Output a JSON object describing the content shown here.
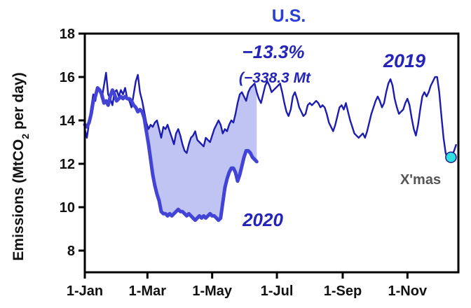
{
  "chart_data": {
    "type": "line",
    "title": "U.S.",
    "ylabel_main": "Emissions (MtCO",
    "ylabel_sub": "2",
    "ylabel_tail": " per day)",
    "xlabel": "",
    "ylim": [
      7,
      18
    ],
    "y_ticks": [
      8,
      10,
      12,
      14,
      16,
      18
    ],
    "x_ticks": [
      "1-Jan",
      "1-Mar",
      "1-May",
      "1-Jul",
      "1-Sep",
      "1-Nov"
    ],
    "x_tick_days": [
      0,
      59,
      120,
      181,
      243,
      304
    ],
    "grid": false,
    "colors": {
      "series_2019": "#1c1cb0",
      "series_2020": "#4343d6",
      "shade": "#bfc4f2",
      "title": "#2a3fd6",
      "annotation": "#2424b8",
      "marker": "#2ee0e0",
      "xmas_label": "#555555"
    },
    "series": [
      {
        "name": "2019",
        "points": [
          [
            0,
            13.6
          ],
          [
            2,
            13.2
          ],
          [
            4,
            13.9
          ],
          [
            6,
            14.6
          ],
          [
            8,
            15.2
          ],
          [
            10,
            14.9
          ],
          [
            12,
            15.5
          ],
          [
            14,
            15.4
          ],
          [
            16,
            15.0
          ],
          [
            18,
            15.6
          ],
          [
            20,
            16.2
          ],
          [
            22,
            15.2
          ],
          [
            24,
            15.0
          ],
          [
            26,
            14.7
          ],
          [
            28,
            15.3
          ],
          [
            30,
            15.4
          ],
          [
            32,
            15.1
          ],
          [
            34,
            15.4
          ],
          [
            36,
            15.2
          ],
          [
            38,
            15.5
          ],
          [
            40,
            15.0
          ],
          [
            42,
            14.9
          ],
          [
            44,
            14.6
          ],
          [
            46,
            15.2
          ],
          [
            48,
            15.8
          ],
          [
            50,
            16.1
          ],
          [
            52,
            15.3
          ],
          [
            54,
            14.9
          ],
          [
            56,
            14.4
          ],
          [
            58,
            13.9
          ],
          [
            60,
            13.6
          ],
          [
            62,
            13.8
          ],
          [
            64,
            13.7
          ],
          [
            66,
            13.9
          ],
          [
            68,
            14.0
          ],
          [
            70,
            13.6
          ],
          [
            72,
            13.2
          ],
          [
            74,
            13.7
          ],
          [
            76,
            13.6
          ],
          [
            78,
            13.8
          ],
          [
            80,
            13.5
          ],
          [
            82,
            13.2
          ],
          [
            84,
            12.9
          ],
          [
            86,
            13.4
          ],
          [
            88,
            13.6
          ],
          [
            90,
            13.3
          ],
          [
            92,
            12.9
          ],
          [
            94,
            12.6
          ],
          [
            96,
            12.5
          ],
          [
            98,
            12.9
          ],
          [
            100,
            13.2
          ],
          [
            102,
            13.3
          ],
          [
            104,
            13.5
          ],
          [
            106,
            13.1
          ],
          [
            108,
            13.0
          ],
          [
            110,
            12.9
          ],
          [
            112,
            12.8
          ],
          [
            114,
            13.2
          ],
          [
            116,
            13.1
          ],
          [
            118,
            13.0
          ],
          [
            120,
            13.3
          ],
          [
            122,
            13.6
          ],
          [
            124,
            13.8
          ],
          [
            126,
            14.0
          ],
          [
            128,
            13.8
          ],
          [
            130,
            13.4
          ],
          [
            132,
            13.6
          ],
          [
            134,
            13.5
          ],
          [
            136,
            13.8
          ],
          [
            138,
            14.0
          ],
          [
            140,
            13.9
          ],
          [
            142,
            14.3
          ],
          [
            144,
            14.8
          ],
          [
            146,
            15.2
          ],
          [
            148,
            15.3
          ],
          [
            150,
            15.1
          ],
          [
            152,
            14.9
          ],
          [
            154,
            15.3
          ],
          [
            156,
            15.5
          ],
          [
            158,
            15.6
          ],
          [
            160,
            15.7
          ],
          [
            162,
            15.3
          ],
          [
            164,
            15.0
          ],
          [
            166,
            14.8
          ],
          [
            168,
            15.2
          ],
          [
            170,
            15.6
          ],
          [
            172,
            15.8
          ],
          [
            174,
            15.6
          ],
          [
            176,
            15.3
          ],
          [
            178,
            15.4
          ],
          [
            180,
            15.5
          ],
          [
            182,
            15.6
          ],
          [
            184,
            15.7
          ],
          [
            186,
            15.3
          ],
          [
            188,
            14.8
          ],
          [
            190,
            14.4
          ],
          [
            192,
            14.2
          ],
          [
            194,
            14.5
          ],
          [
            196,
            15.1
          ],
          [
            198,
            15.3
          ],
          [
            200,
            15.0
          ],
          [
            202,
            14.6
          ],
          [
            204,
            14.4
          ],
          [
            206,
            14.2
          ],
          [
            208,
            14.3
          ],
          [
            210,
            14.7
          ],
          [
            212,
            14.8
          ],
          [
            214,
            14.7
          ],
          [
            216,
            14.8
          ],
          [
            218,
            14.9
          ],
          [
            220,
            14.8
          ],
          [
            222,
            14.6
          ],
          [
            224,
            14.7
          ],
          [
            226,
            14.6
          ],
          [
            228,
            14.3
          ],
          [
            230,
            13.9
          ],
          [
            232,
            13.7
          ],
          [
            234,
            13.5
          ],
          [
            236,
            13.8
          ],
          [
            238,
            14.2
          ],
          [
            240,
            14.6
          ],
          [
            242,
            14.7
          ],
          [
            244,
            14.5
          ],
          [
            246,
            14.8
          ],
          [
            248,
            14.4
          ],
          [
            250,
            14.0
          ],
          [
            252,
            13.7
          ],
          [
            254,
            13.4
          ],
          [
            256,
            13.3
          ],
          [
            258,
            13.2
          ],
          [
            260,
            13.3
          ],
          [
            262,
            13.4
          ],
          [
            264,
            13.2
          ],
          [
            266,
            13.5
          ],
          [
            268,
            13.9
          ],
          [
            270,
            14.3
          ],
          [
            272,
            14.6
          ],
          [
            274,
            14.9
          ],
          [
            276,
            15.1
          ],
          [
            278,
            14.9
          ],
          [
            280,
            14.6
          ],
          [
            282,
            14.8
          ],
          [
            284,
            15.3
          ],
          [
            286,
            15.7
          ],
          [
            288,
            15.9
          ],
          [
            290,
            15.6
          ],
          [
            292,
            15.0
          ],
          [
            294,
            14.6
          ],
          [
            296,
            14.3
          ],
          [
            298,
            14.4
          ],
          [
            300,
            14.5
          ],
          [
            302,
            14.8
          ],
          [
            304,
            15.0
          ],
          [
            306,
            14.7
          ],
          [
            308,
            14.1
          ],
          [
            310,
            13.6
          ],
          [
            312,
            13.3
          ],
          [
            314,
            13.8
          ],
          [
            316,
            14.5
          ],
          [
            318,
            15.1
          ],
          [
            320,
            15.3
          ],
          [
            322,
            15.1
          ],
          [
            324,
            15.3
          ],
          [
            326,
            15.6
          ],
          [
            328,
            15.8
          ],
          [
            330,
            16.0
          ],
          [
            332,
            16.0
          ],
          [
            334,
            15.3
          ],
          [
            336,
            14.2
          ],
          [
            338,
            13.2
          ],
          [
            340,
            12.5
          ],
          [
            342,
            12.2
          ],
          [
            344,
            12.3
          ],
          [
            346,
            12.4
          ],
          [
            348,
            12.6
          ],
          [
            350,
            12.9
          ]
        ]
      },
      {
        "name": "2020",
        "points": [
          [
            0,
            13.8
          ],
          [
            2,
            13.7
          ],
          [
            4,
            13.9
          ],
          [
            6,
            14.3
          ],
          [
            8,
            14.9
          ],
          [
            10,
            15.1
          ],
          [
            12,
            15.5
          ],
          [
            14,
            15.4
          ],
          [
            16,
            15.2
          ],
          [
            18,
            14.8
          ],
          [
            20,
            14.9
          ],
          [
            22,
            14.7
          ],
          [
            24,
            15.1
          ],
          [
            26,
            15.4
          ],
          [
            28,
            15.2
          ],
          [
            30,
            14.9
          ],
          [
            32,
            15.0
          ],
          [
            34,
            15.1
          ],
          [
            36,
            15.0
          ],
          [
            38,
            15.1
          ],
          [
            40,
            15.0
          ],
          [
            42,
            15.0
          ],
          [
            44,
            14.9
          ],
          [
            46,
            14.7
          ],
          [
            48,
            14.6
          ],
          [
            50,
            14.4
          ],
          [
            52,
            14.5
          ],
          [
            54,
            14.4
          ],
          [
            56,
            14.1
          ],
          [
            58,
            13.5
          ],
          [
            60,
            12.9
          ],
          [
            62,
            12.2
          ],
          [
            64,
            11.5
          ],
          [
            66,
            11.0
          ],
          [
            68,
            10.6
          ],
          [
            70,
            10.3
          ],
          [
            72,
            9.8
          ],
          [
            74,
            9.7
          ],
          [
            76,
            9.7
          ],
          [
            78,
            9.6
          ],
          [
            80,
            9.7
          ],
          [
            82,
            9.6
          ],
          [
            84,
            9.7
          ],
          [
            86,
            9.8
          ],
          [
            88,
            9.9
          ],
          [
            90,
            9.8
          ],
          [
            92,
            9.8
          ],
          [
            94,
            9.7
          ],
          [
            96,
            9.6
          ],
          [
            98,
            9.7
          ],
          [
            100,
            9.6
          ],
          [
            102,
            9.5
          ],
          [
            104,
            9.4
          ],
          [
            106,
            9.5
          ],
          [
            108,
            9.6
          ],
          [
            110,
            9.5
          ],
          [
            112,
            9.6
          ],
          [
            114,
            9.5
          ],
          [
            116,
            9.6
          ],
          [
            118,
            9.7
          ],
          [
            120,
            9.6
          ],
          [
            122,
            9.6
          ],
          [
            124,
            9.5
          ],
          [
            126,
            9.4
          ],
          [
            128,
            9.5
          ],
          [
            130,
            10.2
          ],
          [
            132,
            10.9
          ],
          [
            134,
            11.3
          ],
          [
            136,
            11.6
          ],
          [
            138,
            11.8
          ],
          [
            140,
            11.8
          ],
          [
            142,
            11.6
          ],
          [
            144,
            11.2
          ],
          [
            146,
            11.5
          ],
          [
            148,
            11.9
          ],
          [
            150,
            12.3
          ],
          [
            152,
            12.6
          ],
          [
            154,
            12.6
          ],
          [
            156,
            12.5
          ],
          [
            158,
            12.3
          ],
          [
            160,
            12.2
          ],
          [
            162,
            12.1
          ]
        ]
      }
    ],
    "annotations": {
      "change_percent": "−13.3%",
      "change_absolute": "(−338.3 Mt",
      "label_2019": "2019",
      "label_2020": "2020",
      "xmas_label": "X'mas",
      "xmas_point": [
        345,
        12.3
      ]
    }
  }
}
